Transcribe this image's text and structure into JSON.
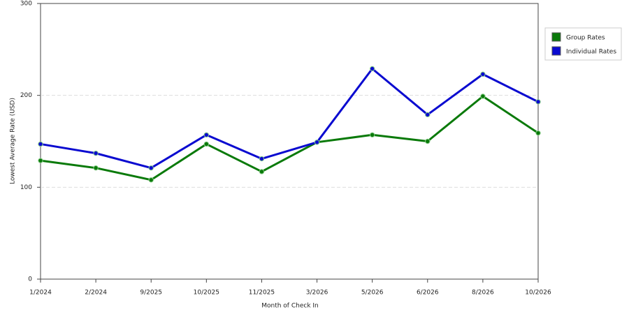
{
  "chart_data": {
    "type": "line",
    "x_label": "Month of Check In",
    "y_label": "Lowest Average Rate (USD)",
    "categories": [
      "1/2024",
      "2/2024",
      "9/2025",
      "10/2025",
      "11/2025",
      "3/2026",
      "5/2026",
      "6/2026",
      "8/2026",
      "10/2026"
    ],
    "series": [
      {
        "name": "Group Rates",
        "color": "#0a7a0a",
        "values": [
          129,
          121,
          108,
          147,
          117,
          149,
          157,
          150,
          199,
          159
        ]
      },
      {
        "name": "Individual Rates",
        "color": "#0a0ad0",
        "values": [
          147,
          137,
          121,
          157,
          131,
          149,
          229,
          179,
          223,
          193
        ]
      }
    ],
    "ylim": [
      0,
      300
    ],
    "yticks": [
      0,
      100,
      200,
      300
    ],
    "grid": true,
    "legend": "right"
  }
}
